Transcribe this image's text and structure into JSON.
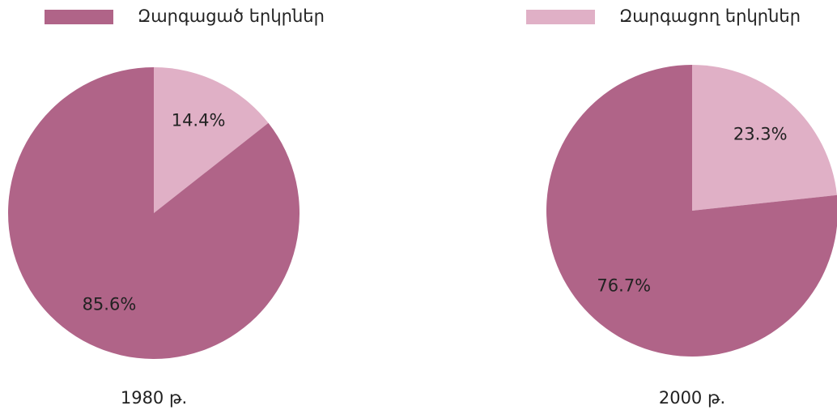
{
  "legend": {
    "categories": [
      "Զարգացած երկրներ",
      "Զարգացող երկրներ"
    ],
    "colors": [
      "#b06488",
      "#e0b0c6"
    ]
  },
  "chart_data": [
    {
      "type": "pie",
      "title": "1980 թ.",
      "values": [
        85.6,
        14.4
      ],
      "value_labels": [
        "85.6%",
        "14.4%"
      ]
    },
    {
      "type": "pie",
      "title": "2000 թ.",
      "values": [
        76.7,
        23.3
      ],
      "value_labels": [
        "76.7%",
        "23.3%"
      ]
    }
  ]
}
